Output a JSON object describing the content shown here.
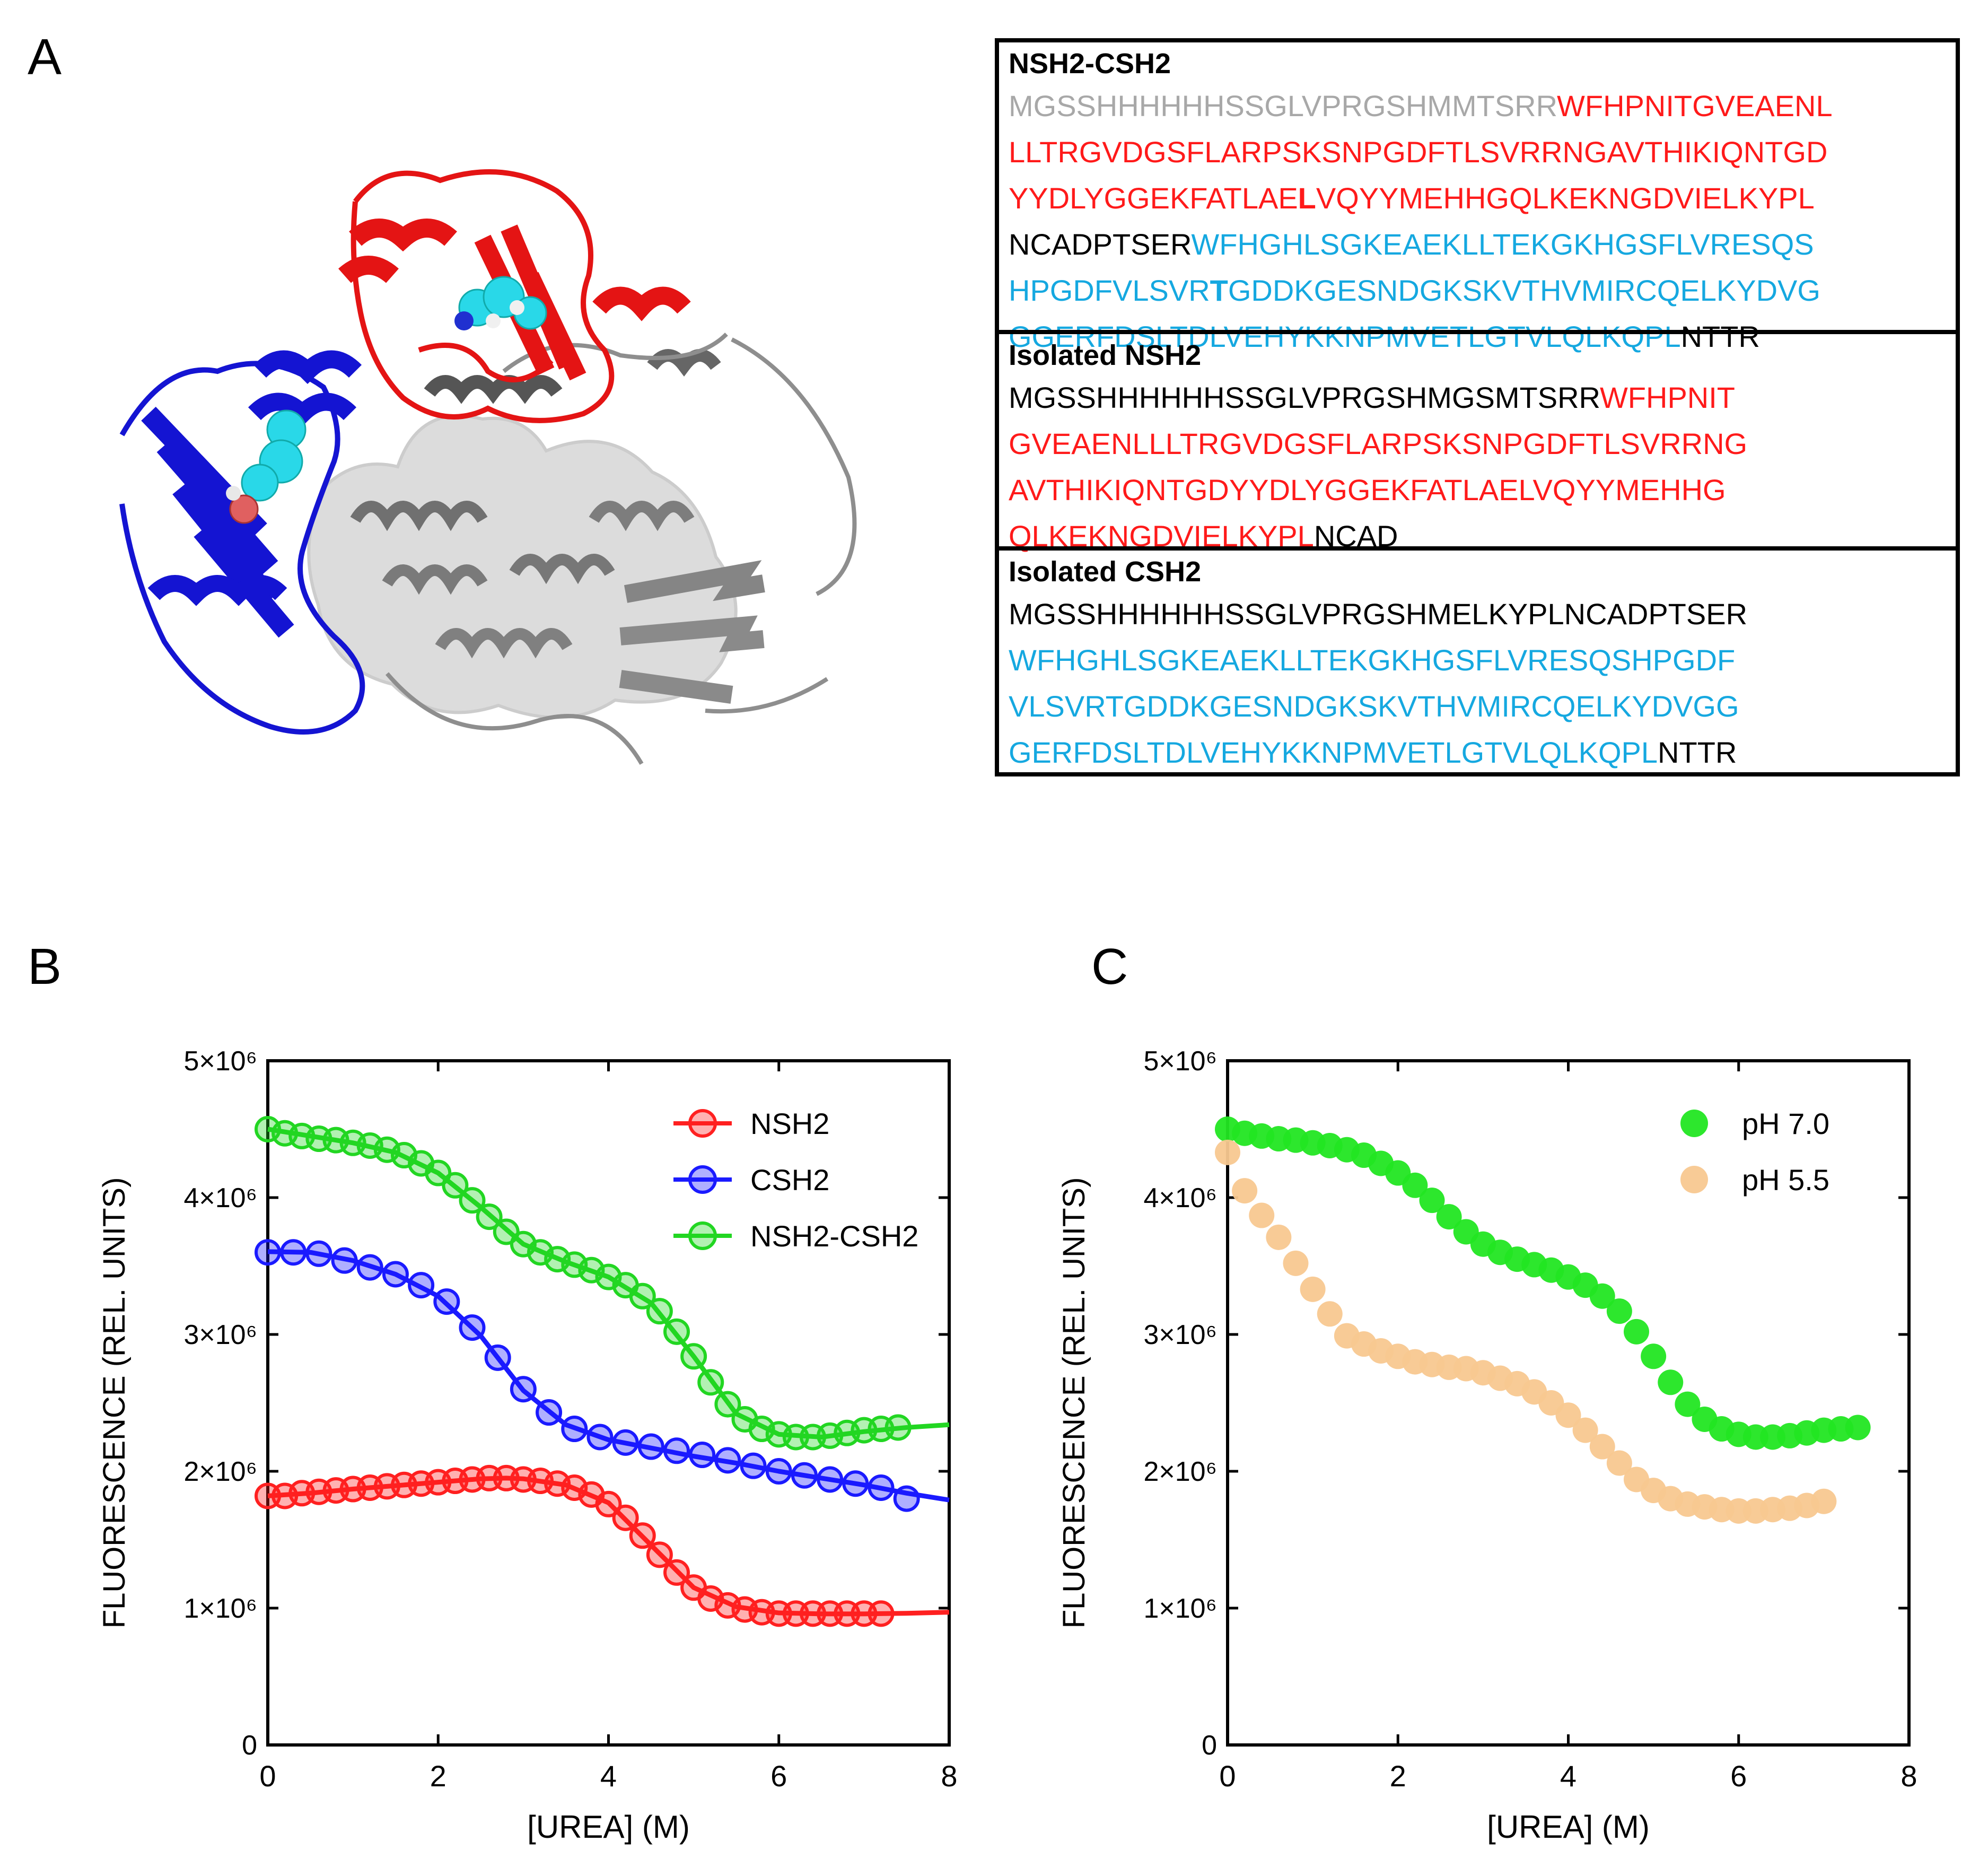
{
  "panel_labels": {
    "a": "A",
    "b": "B",
    "c": "C"
  },
  "colors": {
    "nsh2": "#ff2020",
    "csh2": "#1a1aff",
    "nsh2_csh2": "#22d622",
    "ph70": "#22e622",
    "ph55": "#f8c890",
    "seq_red": "#ff1a1a",
    "seq_cyan": "#15a8e0",
    "seq_gray": "#a8a8a8",
    "seq_black": "#000000"
  },
  "sequences": {
    "nsh2_csh2": {
      "title": "NSH2-CSH2",
      "lines": [
        [
          {
            "t": "MGSSHHHHHHSSGLVPRGSHMMTSRR",
            "c": "gray"
          },
          {
            "t": "WFHPNITGVEAENL",
            "c": "red"
          }
        ],
        [
          {
            "t": "LLTRGVDGSFLARPSKSNPGDFTLSVRRNGAVTHIKIQNTGD",
            "c": "red"
          }
        ],
        [
          {
            "t": "YYDLYGGEKFATLAE",
            "c": "red"
          },
          {
            "t": "L",
            "c": "red",
            "b": true
          },
          {
            "t": "VQYYMEHHGQLKEKNGDVIELKYPL",
            "c": "red"
          }
        ],
        [
          {
            "t": "NCADPTSER",
            "c": "black"
          },
          {
            "t": "WFHGHLSGKEAEKLLTEKGKHGSFLVRESQS",
            "c": "cyan"
          }
        ],
        [
          {
            "t": "HPGDFVLSVR",
            "c": "cyan"
          },
          {
            "t": "T",
            "c": "cyan",
            "b": true
          },
          {
            "t": "GDDKGESNDGKSKVTHVMIRCQELKYDVG",
            "c": "cyan"
          }
        ],
        [
          {
            "t": "GGERFDSLTDLVEHYKKNPMVETLGTVLQLKQPL",
            "c": "cyan"
          },
          {
            "t": "NTTR",
            "c": "black"
          }
        ]
      ]
    },
    "nsh2": {
      "title": "Isolated NSH2",
      "lines": [
        [
          {
            "t": "MGSSHHHHHHSSGLVPRGSHMGSMTSRR",
            "c": "black"
          },
          {
            "t": "WFHPNIT",
            "c": "red"
          }
        ],
        [
          {
            "t": "GVEAENLLLTRGVDGSFLARPSKSNPGDFTLSVRRNG",
            "c": "red"
          }
        ],
        [
          {
            "t": "AVTHIKIQNTGDYYDLYGGEKFATLAELVQYYMEHHG",
            "c": "red"
          }
        ],
        [
          {
            "t": "QLKEKNGDVIELKYPL",
            "c": "red"
          },
          {
            "t": "NCAD",
            "c": "black"
          }
        ]
      ]
    },
    "csh2": {
      "title": "Isolated CSH2",
      "lines": [
        [
          {
            "t": "MGSSHHHHHHSSGLVPRGSHMELKYPLNCADPTSER",
            "c": "black"
          }
        ],
        [
          {
            "t": "WFHGHLSGKEAEKLLTEKGKHGSFLVRESQSHPGDF",
            "c": "cyan"
          }
        ],
        [
          {
            "t": "VLSVRTGDDKGESNDGKSKVTHVMIRCQELKYDVGG",
            "c": "cyan"
          }
        ],
        [
          {
            "t": "GERFDSLTDLVEHYKKNPMVETLGTVLQLKQPL",
            "c": "cyan"
          },
          {
            "t": "NTTR",
            "c": "black"
          }
        ]
      ]
    }
  },
  "chart_data": [
    {
      "type": "line",
      "panel": "B",
      "title": "",
      "xlabel": "[UREA] (M)",
      "ylabel": "FLUORESCENCE (REL. UNITS)",
      "xlim": [
        0,
        8
      ],
      "ylim": [
        0,
        5000000
      ],
      "xticks": [
        0,
        2,
        4,
        6,
        8
      ],
      "xtick_labels": [
        "0",
        "2",
        "4",
        "6",
        "8"
      ],
      "yticks": [
        0,
        1000000,
        2000000,
        3000000,
        4000000,
        5000000
      ],
      "ytick_labels": [
        "0",
        "1×10⁶",
        "2×10⁶",
        "3×10⁶",
        "4×10⁶",
        "5×10⁶"
      ],
      "legend": "top-right",
      "grid": false,
      "series": [
        {
          "name": "NSH2",
          "color": "#ff2020",
          "x": [
            0,
            0.2,
            0.4,
            0.6,
            0.8,
            1.0,
            1.2,
            1.4,
            1.6,
            1.8,
            2.0,
            2.2,
            2.4,
            2.6,
            2.8,
            3.0,
            3.2,
            3.4,
            3.6,
            3.8,
            4.0,
            4.2,
            4.4,
            4.6,
            4.8,
            5.0,
            5.2,
            5.4,
            5.6,
            5.8,
            6.0,
            6.2,
            6.4,
            6.6,
            6.8,
            7.0,
            7.2
          ],
          "y": [
            1820000,
            1820000,
            1840000,
            1850000,
            1860000,
            1870000,
            1880000,
            1890000,
            1900000,
            1910000,
            1920000,
            1930000,
            1940000,
            1950000,
            1950000,
            1940000,
            1930000,
            1910000,
            1880000,
            1830000,
            1760000,
            1660000,
            1530000,
            1390000,
            1260000,
            1150000,
            1070000,
            1020000,
            990000,
            970000,
            960000,
            960000,
            960000,
            960000,
            960000,
            960000,
            960000
          ],
          "fit_x": [
            0,
            0.5,
            1,
            1.5,
            2,
            2.5,
            2.8,
            3,
            3.5,
            4,
            4.5,
            5,
            5.5,
            6,
            6.5,
            7,
            7.5,
            8
          ],
          "fit_y": [
            1820000,
            1840000,
            1870000,
            1895000,
            1920000,
            1945000,
            1950000,
            1945000,
            1900000,
            1770000,
            1460000,
            1150000,
            1010000,
            965000,
            958000,
            958000,
            962000,
            970000
          ]
        },
        {
          "name": "CSH2",
          "color": "#1a1aff",
          "x": [
            0,
            0.3,
            0.6,
            0.9,
            1.2,
            1.5,
            1.8,
            2.1,
            2.4,
            2.7,
            3.0,
            3.3,
            3.6,
            3.9,
            4.2,
            4.5,
            4.8,
            5.1,
            5.4,
            5.7,
            6.0,
            6.3,
            6.6,
            6.9,
            7.2,
            7.5
          ],
          "y": [
            3600000,
            3600000,
            3590000,
            3540000,
            3490000,
            3440000,
            3360000,
            3240000,
            3050000,
            2830000,
            2600000,
            2430000,
            2310000,
            2250000,
            2210000,
            2180000,
            2150000,
            2120000,
            2080000,
            2040000,
            2000000,
            1970000,
            1940000,
            1910000,
            1880000,
            1800000
          ],
          "fit_x": [
            0,
            0.5,
            1,
            1.5,
            2,
            2.5,
            3,
            3.5,
            4,
            4.5,
            5,
            5.5,
            6,
            6.5,
            7,
            7.5,
            8
          ],
          "fit_y": [
            3605000,
            3600000,
            3540000,
            3440000,
            3280000,
            2990000,
            2590000,
            2340000,
            2230000,
            2170000,
            2110000,
            2060000,
            2000000,
            1950000,
            1900000,
            1840000,
            1790000
          ]
        },
        {
          "name": "NSH2-CSH2",
          "color": "#22d622",
          "x": [
            0,
            0.2,
            0.4,
            0.6,
            0.8,
            1.0,
            1.2,
            1.4,
            1.6,
            1.8,
            2.0,
            2.2,
            2.4,
            2.6,
            2.8,
            3.0,
            3.2,
            3.4,
            3.6,
            3.8,
            4.0,
            4.2,
            4.4,
            4.6,
            4.8,
            5.0,
            5.2,
            5.4,
            5.6,
            5.8,
            6.0,
            6.2,
            6.4,
            6.6,
            6.8,
            7.0,
            7.2,
            7.4
          ],
          "y": [
            4500000,
            4470000,
            4450000,
            4430000,
            4420000,
            4400000,
            4380000,
            4350000,
            4310000,
            4250000,
            4180000,
            4090000,
            3980000,
            3860000,
            3750000,
            3660000,
            3600000,
            3550000,
            3510000,
            3470000,
            3420000,
            3360000,
            3280000,
            3170000,
            3020000,
            2840000,
            2650000,
            2490000,
            2380000,
            2310000,
            2270000,
            2250000,
            2250000,
            2260000,
            2280000,
            2300000,
            2310000,
            2320000
          ],
          "fit_x": [
            0,
            0.5,
            1,
            1.5,
            2,
            2.5,
            3,
            3.5,
            4,
            4.5,
            5,
            5.5,
            6,
            6.5,
            7,
            7.5,
            8
          ],
          "fit_y": [
            4500000,
            4450000,
            4400000,
            4330000,
            4180000,
            3930000,
            3660000,
            3530000,
            3420000,
            3230000,
            2840000,
            2420000,
            2270000,
            2250000,
            2290000,
            2320000,
            2340000
          ]
        }
      ]
    },
    {
      "type": "scatter",
      "panel": "C",
      "title": "",
      "xlabel": "[UREA] (M)",
      "ylabel": "FLUORESCENCE (REL. UNITS)",
      "xlim": [
        0,
        8
      ],
      "ylim": [
        0,
        5000000
      ],
      "xticks": [
        0,
        2,
        4,
        6,
        8
      ],
      "xtick_labels": [
        "0",
        "2",
        "4",
        "6",
        "8"
      ],
      "yticks": [
        0,
        1000000,
        2000000,
        3000000,
        4000000,
        5000000
      ],
      "ytick_labels": [
        "0",
        "1×10⁶",
        "2×10⁶",
        "3×10⁶",
        "4×10⁶",
        "5×10⁶"
      ],
      "legend": "top-right",
      "grid": false,
      "series": [
        {
          "name": "pH 7.0",
          "color": "#22e622",
          "x": [
            0,
            0.2,
            0.4,
            0.6,
            0.8,
            1.0,
            1.2,
            1.4,
            1.6,
            1.8,
            2.0,
            2.2,
            2.4,
            2.6,
            2.8,
            3.0,
            3.2,
            3.4,
            3.6,
            3.8,
            4.0,
            4.2,
            4.4,
            4.6,
            4.8,
            5.0,
            5.2,
            5.4,
            5.6,
            5.8,
            6.0,
            6.2,
            6.4,
            6.6,
            6.8,
            7.0,
            7.2,
            7.4
          ],
          "y": [
            4500000,
            4470000,
            4450000,
            4430000,
            4420000,
            4400000,
            4380000,
            4350000,
            4310000,
            4250000,
            4180000,
            4090000,
            3980000,
            3860000,
            3750000,
            3660000,
            3600000,
            3550000,
            3510000,
            3470000,
            3420000,
            3360000,
            3280000,
            3170000,
            3020000,
            2840000,
            2650000,
            2490000,
            2380000,
            2310000,
            2270000,
            2250000,
            2250000,
            2260000,
            2280000,
            2300000,
            2310000,
            2320000
          ]
        },
        {
          "name": "pH 5.5",
          "color": "#f8c890",
          "x": [
            0,
            0.2,
            0.4,
            0.6,
            0.8,
            1.0,
            1.2,
            1.4,
            1.6,
            1.8,
            2.0,
            2.2,
            2.4,
            2.6,
            2.8,
            3.0,
            3.2,
            3.4,
            3.6,
            3.8,
            4.0,
            4.2,
            4.4,
            4.6,
            4.8,
            5.0,
            5.2,
            5.4,
            5.6,
            5.8,
            6.0,
            6.2,
            6.4,
            6.6,
            6.8,
            7.0
          ],
          "y": [
            4330000,
            4050000,
            3870000,
            3710000,
            3520000,
            3330000,
            3150000,
            2990000,
            2930000,
            2880000,
            2840000,
            2800000,
            2780000,
            2760000,
            2750000,
            2720000,
            2680000,
            2640000,
            2580000,
            2500000,
            2410000,
            2300000,
            2180000,
            2060000,
            1940000,
            1860000,
            1800000,
            1760000,
            1740000,
            1720000,
            1710000,
            1710000,
            1720000,
            1730000,
            1750000,
            1780000
          ]
        }
      ]
    }
  ]
}
